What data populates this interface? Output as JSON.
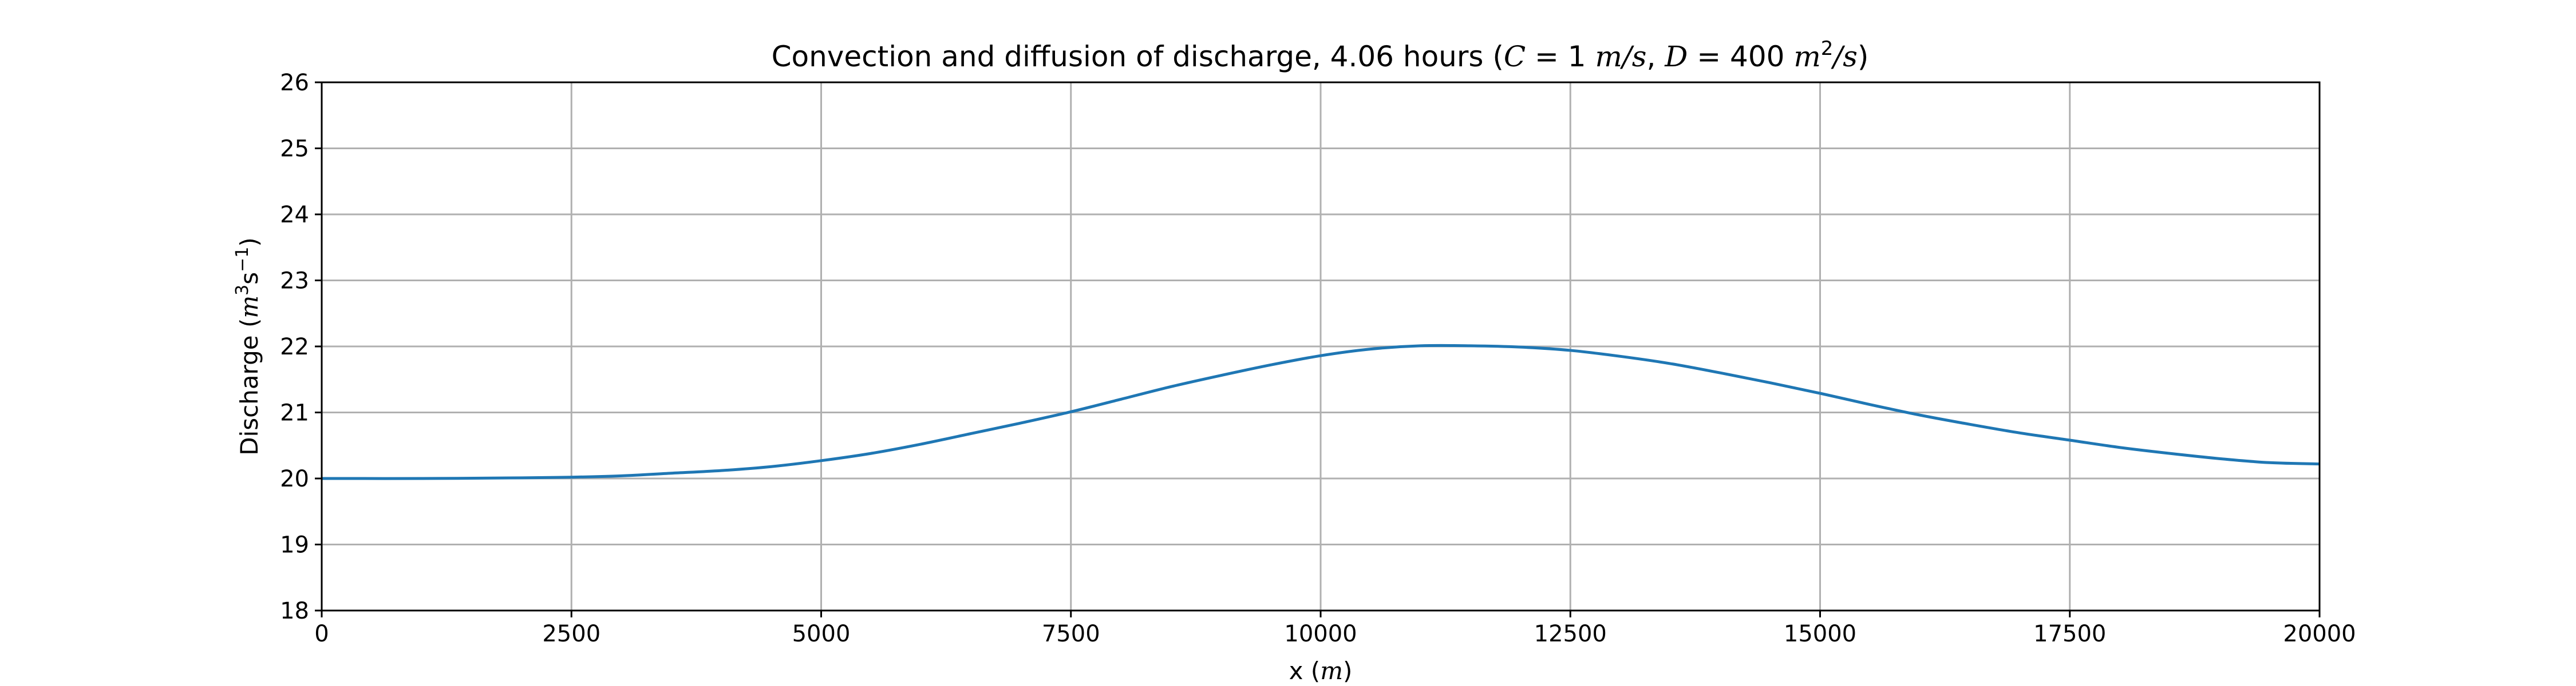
{
  "chart_data": {
    "type": "line",
    "title": {
      "text_before": "Convection and diffusion of discharge, 4.06 hours (",
      "C_symbol": "C",
      "C_value": " = 1 ",
      "C_unit": "m/s",
      "separator": ", ",
      "D_symbol": "D",
      "D_value": " = 400 ",
      "D_unit_base": "m",
      "D_unit_exp": "2",
      "D_unit_rest": "/s",
      "text_after": ")"
    },
    "xlabel": {
      "text": "x (",
      "unit": "m",
      "close": ")"
    },
    "ylabel": {
      "text": "Discharge (",
      "unit_a": "m",
      "exp_a": "3",
      "unit_b": "s",
      "exp_b": "−1",
      "close": ")"
    },
    "xlim": [
      0,
      20000
    ],
    "ylim": [
      18,
      26
    ],
    "xticks": [
      0,
      2500,
      5000,
      7500,
      10000,
      12500,
      15000,
      17500,
      20000
    ],
    "yticks": [
      18,
      19,
      20,
      21,
      22,
      23,
      24,
      25,
      26
    ],
    "grid": true,
    "series": [
      {
        "color": "#1f77b4",
        "x": [
          0,
          1000,
          2000,
          2500,
          3000,
          3500,
          4000,
          4500,
          5000,
          5500,
          6000,
          6500,
          7000,
          7500,
          8000,
          8500,
          9000,
          9500,
          10000,
          10500,
          11000,
          11500,
          12000,
          12500,
          13000,
          13500,
          14000,
          14500,
          15000,
          15500,
          16000,
          16500,
          17000,
          17500,
          18000,
          18500,
          19000,
          19500,
          20000
        ],
        "y": [
          20.0,
          20.0,
          20.01,
          20.02,
          20.04,
          20.08,
          20.12,
          20.18,
          20.27,
          20.38,
          20.52,
          20.68,
          20.84,
          21.01,
          21.2,
          21.39,
          21.56,
          21.72,
          21.86,
          21.96,
          22.01,
          22.01,
          21.99,
          21.94,
          21.85,
          21.74,
          21.6,
          21.45,
          21.29,
          21.12,
          20.96,
          20.82,
          20.69,
          20.58,
          20.47,
          20.38,
          20.3,
          20.24,
          20.22
        ]
      }
    ]
  }
}
